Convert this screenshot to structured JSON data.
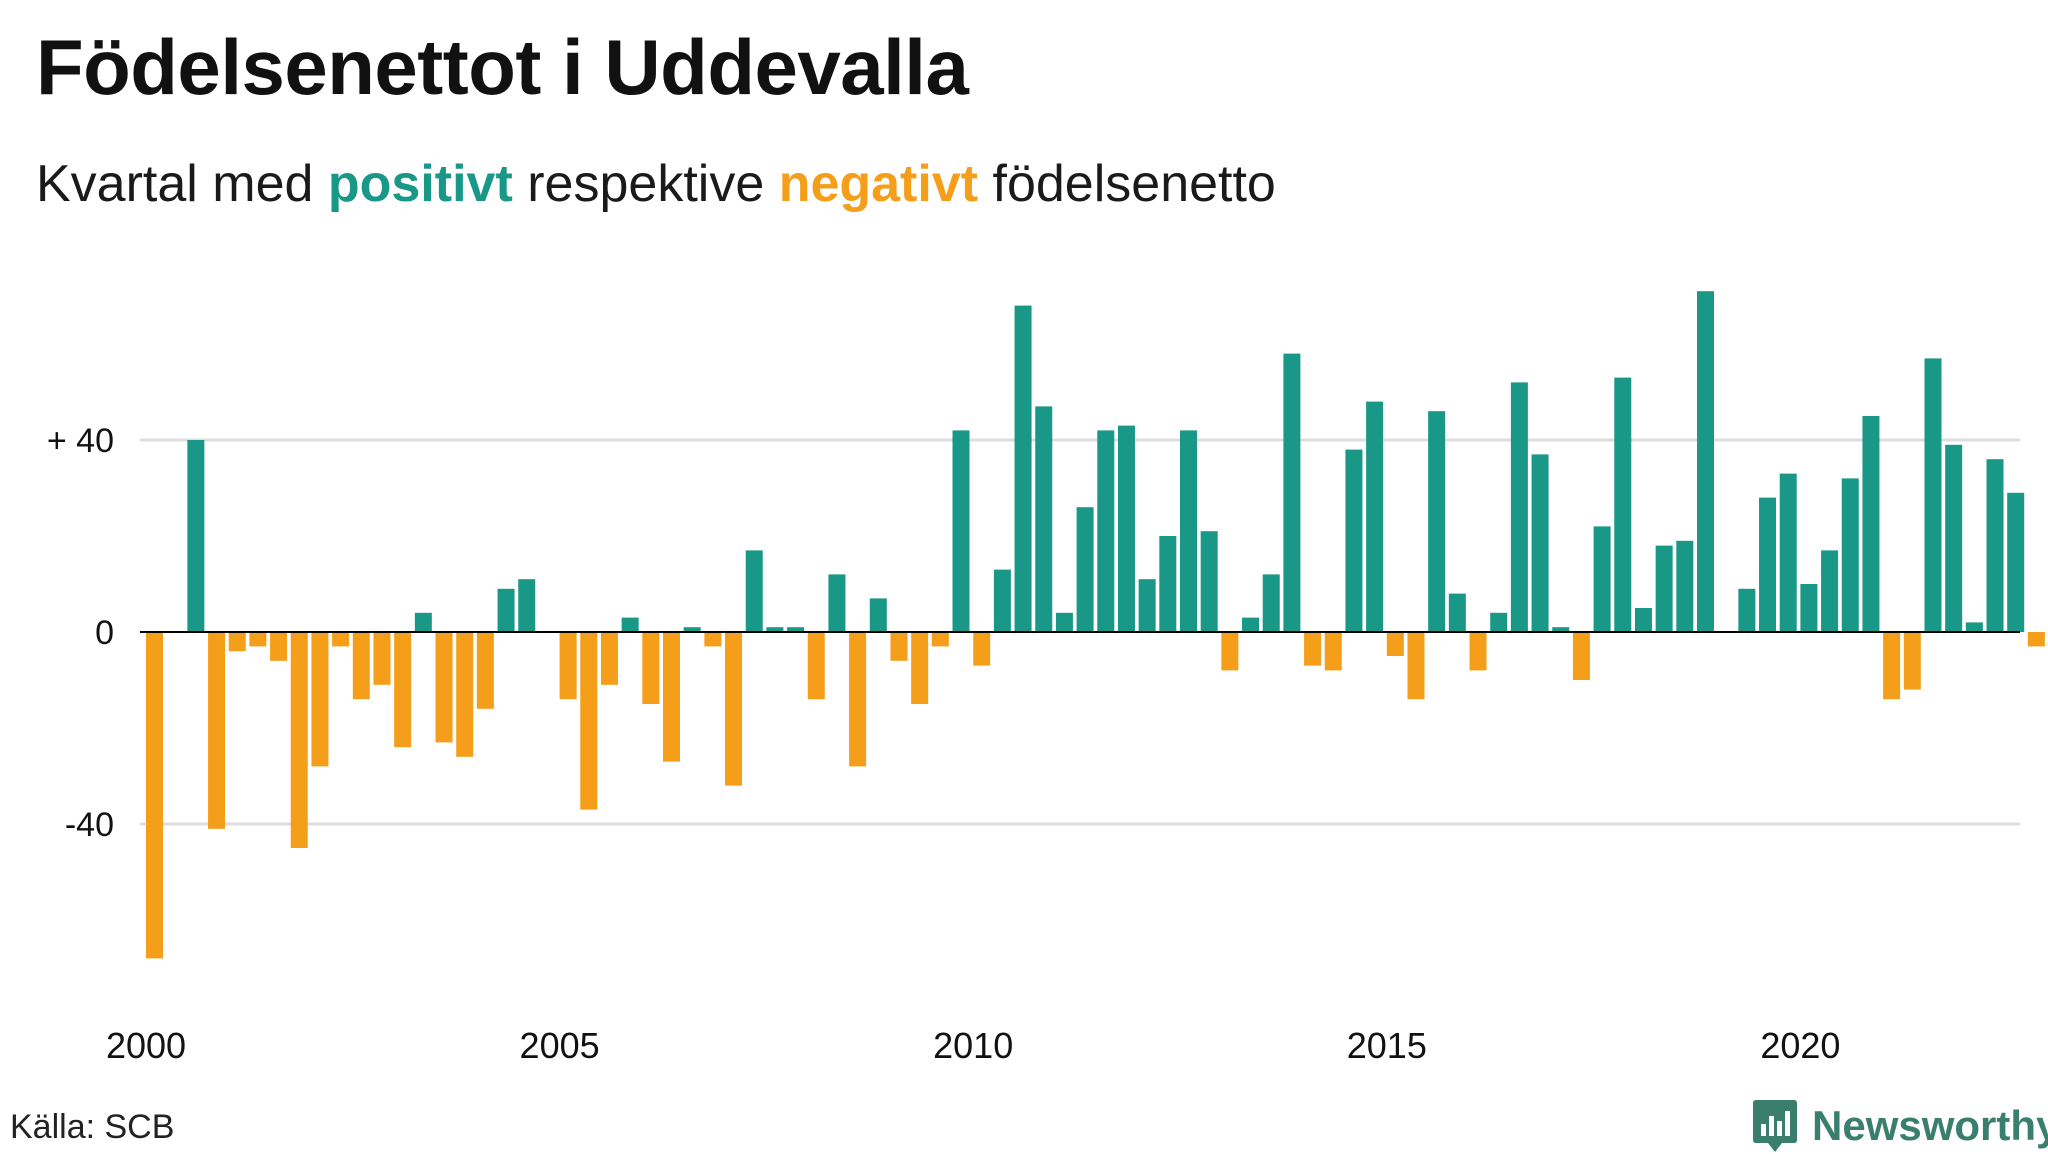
{
  "header": {
    "title": "Födelsenettot i Uddevalla",
    "subtitle_pre": "Kvartal med ",
    "subtitle_positive": "positivt",
    "subtitle_mid": " respektive ",
    "subtitle_negative": "negativt",
    "subtitle_post": " födelsenetto"
  },
  "footer": {
    "source": "Källa: SCB",
    "brand": "Newsworthy",
    "brand_icon": "bar-chart-speech-bubble-icon"
  },
  "colors": {
    "positive": "#199787",
    "negative": "#f59e19",
    "grid": "#dddddd",
    "zero_line": "#000000",
    "brand": "#3a7f6e"
  },
  "chart_data": {
    "type": "bar",
    "x_start": "2000 Q1",
    "frequency": "quarterly",
    "xticks": [
      "2000",
      "2005",
      "2010",
      "2015",
      "2020"
    ],
    "ytick_labels": [
      "+ 40",
      "0",
      "-40"
    ],
    "ytick_values": [
      40,
      0,
      -40
    ],
    "ylim": [
      -75,
      75
    ],
    "grid": true,
    "values": [
      -68,
      0,
      40,
      -41,
      -4,
      -3,
      -6,
      -45,
      -28,
      -3,
      -14,
      -11,
      -24,
      4,
      -23,
      -26,
      -16,
      9,
      11,
      0,
      -14,
      -37,
      -11,
      3,
      -15,
      -27,
      1,
      -3,
      -32,
      17,
      1,
      1,
      -14,
      12,
      -28,
      7,
      -6,
      -15,
      -3,
      42,
      -7,
      13,
      68,
      47,
      4,
      26,
      42,
      43,
      11,
      20,
      42,
      21,
      -8,
      3,
      12,
      58,
      -7,
      -8,
      38,
      48,
      -5,
      -14,
      46,
      8,
      -8,
      4,
      52,
      37,
      1,
      -10,
      22,
      53,
      5,
      18,
      19,
      71,
      0,
      9,
      28,
      33,
      10,
      17,
      32,
      45,
      -14,
      -12,
      57,
      39,
      2,
      36,
      29,
      -3
    ]
  }
}
